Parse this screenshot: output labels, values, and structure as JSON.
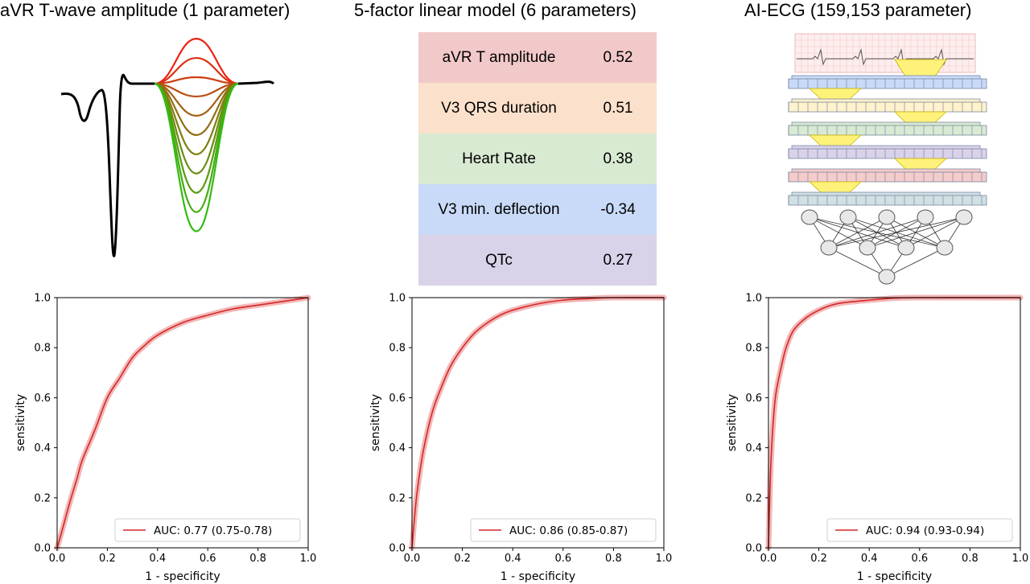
{
  "panels": [
    {
      "title": "aVR T-wave amplitude (1 parameter)"
    },
    {
      "title": "5-factor linear model (6 parameters)"
    },
    {
      "title": "AI-ECG (159,153 parameter)"
    }
  ],
  "features": [
    {
      "name": "aVR T amplitude",
      "value": "0.52",
      "color": "#f2c9c9"
    },
    {
      "name": "V3 QRS duration",
      "value": "0.51",
      "color": "#fbe1cc"
    },
    {
      "name": "Heart Rate",
      "value": "0.38",
      "color": "#d9ead3"
    },
    {
      "name": "V3 min. deflection",
      "value": "-0.34",
      "color": "#c9daf8"
    },
    {
      "name": "QTc",
      "value": "0.27",
      "color": "#d9d2e9"
    }
  ],
  "colors": {
    "roc_line": "#d62728",
    "roc_band": "#f2b8b8",
    "wave_red": "#ee2211",
    "wave_green": "#33bb11"
  },
  "chart_data": [
    {
      "type": "line",
      "xlabel": "1 - specificity",
      "ylabel": "sensitivity",
      "xlim": [
        0,
        1
      ],
      "ylim": [
        0,
        1
      ],
      "xticks": [
        "0.0",
        "0.2",
        "0.4",
        "0.6",
        "0.8",
        "1.0"
      ],
      "yticks": [
        "0.0",
        "0.2",
        "0.4",
        "0.6",
        "0.8",
        "1.0"
      ],
      "legend_position": "lower-right",
      "series": [
        {
          "name": "AUC: 0.77 (0.75-0.78)",
          "x": [
            0,
            0.02,
            0.05,
            0.08,
            0.1,
            0.15,
            0.2,
            0.25,
            0.3,
            0.35,
            0.4,
            0.5,
            0.6,
            0.7,
            0.8,
            0.9,
            1.0
          ],
          "y": [
            0,
            0.07,
            0.18,
            0.28,
            0.35,
            0.47,
            0.6,
            0.68,
            0.76,
            0.81,
            0.85,
            0.9,
            0.93,
            0.955,
            0.97,
            0.985,
            1.0
          ]
        }
      ]
    },
    {
      "type": "line",
      "xlabel": "1 - specificity",
      "ylabel": "sensitivity",
      "xlim": [
        0,
        1
      ],
      "ylim": [
        0,
        1
      ],
      "xticks": [
        "0.0",
        "0.2",
        "0.4",
        "0.6",
        "0.8",
        "1.0"
      ],
      "yticks": [
        "0.0",
        "0.2",
        "0.4",
        "0.6",
        "0.8",
        "1.0"
      ],
      "legend_position": "lower-right",
      "series": [
        {
          "name": "AUC: 0.86 (0.85-0.87)",
          "x": [
            0,
            0.01,
            0.02,
            0.04,
            0.06,
            0.08,
            0.1,
            0.15,
            0.2,
            0.25,
            0.3,
            0.35,
            0.4,
            0.5,
            0.6,
            0.7,
            0.8,
            1.0
          ],
          "y": [
            0,
            0.12,
            0.22,
            0.36,
            0.46,
            0.54,
            0.6,
            0.72,
            0.8,
            0.86,
            0.9,
            0.93,
            0.95,
            0.975,
            0.99,
            0.996,
            1.0,
            1.0
          ]
        }
      ]
    },
    {
      "type": "line",
      "xlabel": "1 - specificity",
      "ylabel": "sensitivity",
      "xlim": [
        0,
        1
      ],
      "ylim": [
        0,
        1
      ],
      "xticks": [
        "0.0",
        "0.2",
        "0.4",
        "0.6",
        "0.8",
        "1.0"
      ],
      "yticks": [
        "0.0",
        "0.2",
        "0.4",
        "0.6",
        "0.8",
        "1.0"
      ],
      "legend_position": "lower-right",
      "series": [
        {
          "name": "AUC: 0.94 (0.93-0.94)",
          "x": [
            0,
            0.005,
            0.01,
            0.02,
            0.03,
            0.05,
            0.07,
            0.1,
            0.15,
            0.2,
            0.25,
            0.3,
            0.4,
            0.5,
            0.6,
            1.0
          ],
          "y": [
            0,
            0.2,
            0.35,
            0.52,
            0.62,
            0.72,
            0.8,
            0.87,
            0.92,
            0.95,
            0.97,
            0.98,
            0.99,
            0.998,
            1.0,
            1.0
          ]
        }
      ]
    }
  ]
}
